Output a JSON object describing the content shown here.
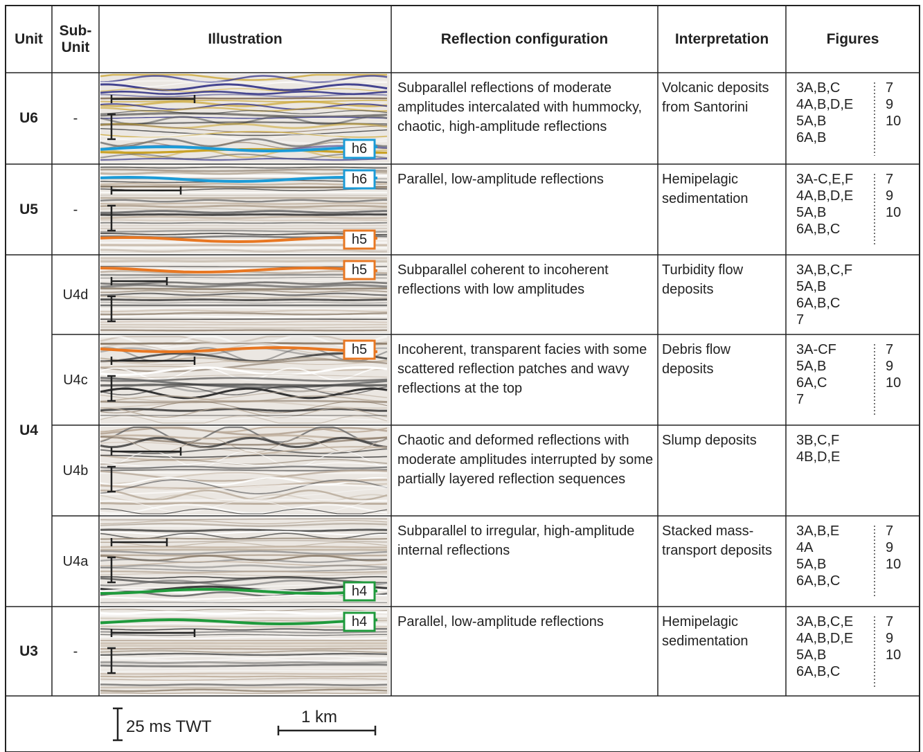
{
  "header": {
    "unit": "Unit",
    "sub_unit": "Sub-Unit",
    "illustration": "Illustration",
    "configuration": "Reflection configuration",
    "interpretation": "Interpretation",
    "figures": "Figures"
  },
  "horizon_colors": {
    "h6": "#1b9bd7",
    "h5": "#e87722",
    "h4": "#1f9a3c"
  },
  "units": [
    {
      "unit": "U6",
      "rows": [
        {
          "sub_unit": "-",
          "configuration": "Subparallel reflections of moderate amplitudes intercalated with hummocky, chaotic, high-amplitude reflections",
          "interpretation": "Volcanic deposits from Santorini",
          "figures": [
            "3A,B,C",
            "4A,B,D,E",
            "5A,B",
            "6A,B"
          ],
          "figure_numbers": [
            "7",
            "9",
            "10"
          ],
          "horizons": [
            "h6"
          ]
        }
      ]
    },
    {
      "unit": "U5",
      "rows": [
        {
          "sub_unit": "-",
          "configuration": "Parallel, low-amplitude reflections",
          "interpretation": "Hemipelagic sedimentation",
          "figures": [
            "3A-C,E,F",
            "4A,B,D,E",
            "5A,B",
            "6A,B,C"
          ],
          "figure_numbers": [
            "7",
            "9",
            "10"
          ],
          "horizons": [
            "h6",
            "h5"
          ]
        }
      ]
    },
    {
      "unit": "U4",
      "rows": [
        {
          "sub_unit": "U4d",
          "configuration": "Subparallel coherent to incoherent reflections with low amplitudes",
          "interpretation": "Turbidity flow deposits",
          "figures": [
            "3A,B,C,F",
            "5A,B",
            "6A,B,C",
            "7"
          ],
          "figure_numbers": [],
          "horizons": [
            "h5"
          ]
        },
        {
          "sub_unit": "U4c",
          "configuration": "Incoherent, transparent facies with some scattered reflection patches and wavy reflections at the top",
          "interpretation": "Debris flow deposits",
          "figures": [
            "3A-CF",
            "5A,B",
            "6A,C",
            "7"
          ],
          "figure_numbers": [
            "7",
            "9",
            "10"
          ],
          "horizons": [
            "h5"
          ]
        },
        {
          "sub_unit": "U4b",
          "configuration": "Chaotic and deformed reflections with moderate amplitudes interrupted by some partially layered reflection sequences",
          "interpretation": "Slump deposits",
          "figures": [
            "3B,C,F",
            "4B,D,E"
          ],
          "figure_numbers": [],
          "horizons": []
        },
        {
          "sub_unit": "U4a",
          "configuration": "Subparallel to irregular, high-amplitude internal reflections",
          "interpretation": "Stacked mass-transport deposits",
          "figures": [
            "3A,B,E",
            "4A",
            "5A,B",
            "6A,B,C"
          ],
          "figure_numbers": [
            "7",
            "9",
            "10"
          ],
          "horizons": [
            "h4"
          ]
        }
      ]
    },
    {
      "unit": "U3",
      "rows": [
        {
          "sub_unit": "-",
          "configuration": "Parallel, low-amplitude reflections",
          "interpretation": "Hemipelagic sedimentation",
          "figures": [
            "3A,B,C,E",
            "4A,B,D,E",
            "5A,B",
            "6A,B,C"
          ],
          "figure_numbers": [
            "7",
            "9",
            "10"
          ],
          "horizons": [
            "h4"
          ]
        }
      ]
    }
  ],
  "scale_bar": {
    "twt": "25 ms TWT",
    "distance": "1 km"
  }
}
